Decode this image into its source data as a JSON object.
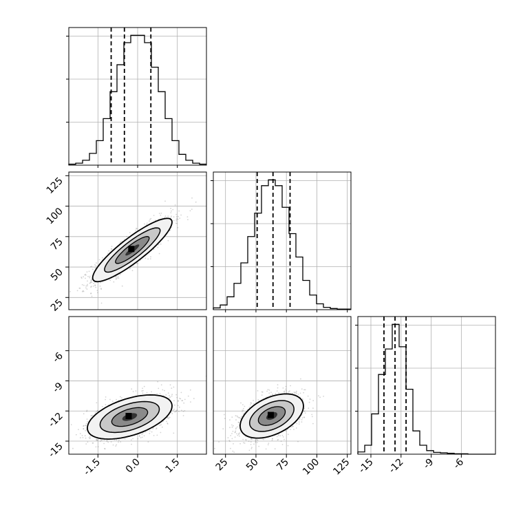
{
  "chart_data": {
    "type": "corner",
    "description": "",
    "parameters": [
      {
        "index": 0,
        "range": [
          -2.6,
          2.6
        ],
        "ticks": [
          "-1.5",
          "0.0",
          "1.5"
        ],
        "tick_values": [
          -1.5,
          0.0,
          1.5
        ],
        "quantiles": [
          -1.0,
          -0.5,
          0.5
        ]
      },
      {
        "index": 1,
        "range": [
          15,
          128
        ],
        "ticks": [
          "25",
          "50",
          "75",
          "100",
          "125"
        ],
        "tick_values": [
          25,
          50,
          75,
          100,
          125
        ],
        "quantiles": [
          51,
          64,
          78
        ]
      },
      {
        "index": 2,
        "range": [
          -16.3,
          -2.6
        ],
        "ticks": [
          "-15",
          "-12",
          "-9",
          "-6"
        ],
        "tick_values": [
          -15,
          -12,
          -9,
          -6
        ],
        "quantiles": [
          -13.7,
          -12.6,
          -11.5
        ]
      }
    ],
    "histograms": [
      {
        "param": 0,
        "edges_start": -2.6,
        "bin_width": 0.26,
        "counts": [
          2,
          4,
          10,
          24,
          50,
          95,
          150,
          205,
          250,
          265,
          265,
          250,
          200,
          150,
          95,
          50,
          22,
          10,
          4,
          2
        ]
      },
      {
        "param": 1,
        "edges_start": 15,
        "bin_width": 5.65,
        "counts": [
          3,
          8,
          22,
          45,
          80,
          125,
          165,
          212,
          222,
          212,
          175,
          130,
          90,
          50,
          25,
          10,
          4,
          2,
          1,
          1
        ]
      },
      {
        "param": 2,
        "edges_start": -16.3,
        "bin_width": 0.685,
        "counts": [
          5,
          20,
          90,
          178,
          235,
          290,
          240,
          145,
          52,
          20,
          8,
          4,
          3,
          2,
          1,
          1,
          0,
          0,
          0,
          0
        ]
      }
    ],
    "joint": [
      {
        "x_param": 0,
        "y_param": 1,
        "mean": [
          -0.2,
          64
        ],
        "sd": [
          0.75,
          13
        ],
        "corr": 0.88
      },
      {
        "x_param": 0,
        "y_param": 2,
        "mean": [
          -0.3,
          -12.6
        ],
        "sd": [
          0.8,
          1.1
        ],
        "corr": 0.5
      },
      {
        "x_param": 1,
        "y_param": 2,
        "mean": [
          63,
          -12.5
        ],
        "sd": [
          13,
          1.1
        ],
        "corr": 0.45
      }
    ],
    "grid": true,
    "colors": {
      "line": "#000000",
      "grid": "#b0b0b0",
      "scatter": "#808080"
    }
  }
}
